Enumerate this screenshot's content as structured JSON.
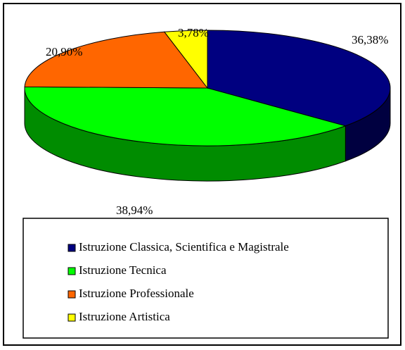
{
  "chart_data": {
    "type": "pie",
    "categories": [
      "Istruzione Classica, Scientifica e Magistrale",
      "Istruzione Tecnica",
      "Istruzione Professionale",
      "Istruzione Artistica"
    ],
    "values": [
      36.38,
      38.94,
      20.9,
      3.78
    ],
    "value_labels": [
      "36,38%",
      "38,94%",
      "20,90%",
      "3,78%"
    ],
    "colors": [
      "#000080",
      "#00ff00",
      "#ff6600",
      "#ffff00"
    ],
    "start_angle": 0,
    "direction": "clockwise",
    "legend": "bottom"
  }
}
